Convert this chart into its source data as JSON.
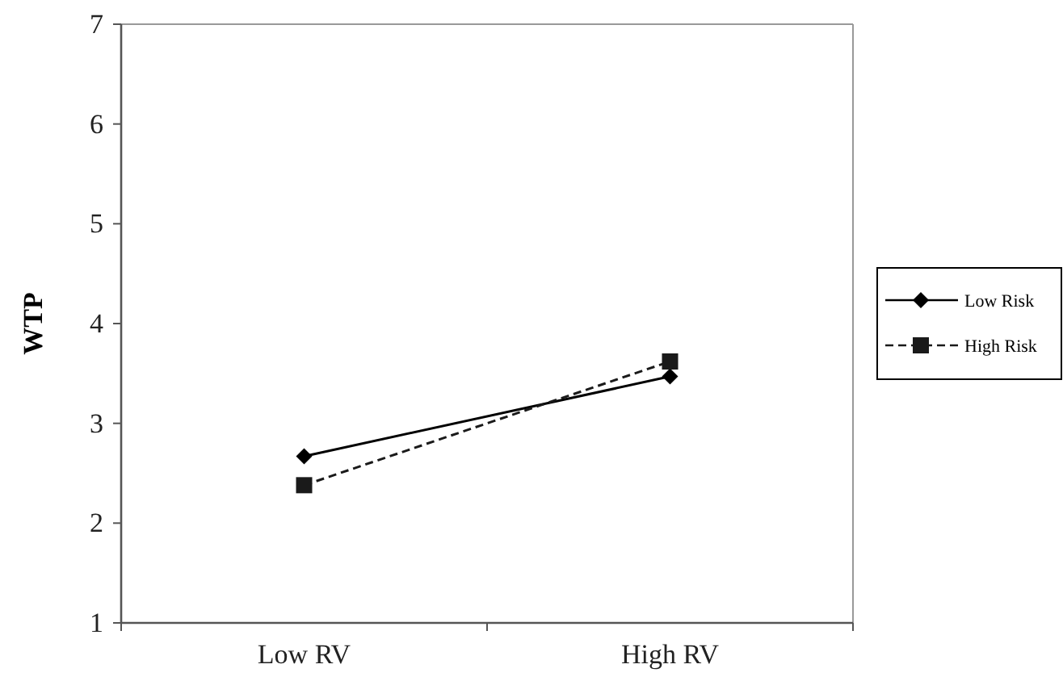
{
  "chart_data": {
    "type": "line",
    "ylabel": "WTP",
    "categories": [
      "Low RV",
      "High RV"
    ],
    "ylim": [
      1,
      7
    ],
    "yticks": [
      1,
      2,
      3,
      4,
      5,
      6,
      7
    ],
    "grid": false,
    "legend": "right",
    "series": [
      {
        "name": "Low Risk",
        "color": "#000000",
        "values": [
          2.67,
          3.47
        ],
        "marker": "diamond",
        "line_style": "solid"
      },
      {
        "name": "High Risk",
        "color": "#1a1a1a",
        "values": [
          2.38,
          3.62
        ],
        "marker": "square",
        "line_style": "dashed"
      }
    ]
  }
}
